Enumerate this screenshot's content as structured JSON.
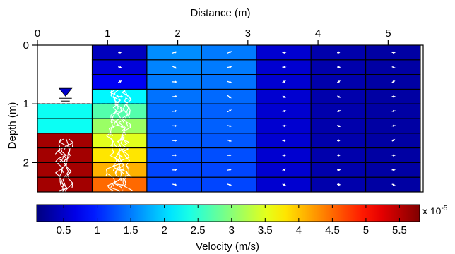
{
  "chart_data": {
    "type": "heatmap",
    "title": "",
    "xlabel": "Distance (m)",
    "ylabel": "Depth (m)",
    "xlim": [
      0,
      5.5
    ],
    "ylim": [
      0,
      2.5
    ],
    "x_ticks": [
      "0",
      "1",
      "2",
      "3",
      "4",
      "5"
    ],
    "y_ticks": [
      "0",
      "1",
      "2"
    ],
    "x_tick_values": [
      0,
      1,
      2,
      3,
      4,
      5
    ],
    "y_tick_values": [
      0,
      1,
      2
    ],
    "water_table_depth": 1.0,
    "columns_x": [
      0,
      0.78,
      1.56,
      2.34,
      3.12,
      3.9,
      4.68,
      5.46
    ],
    "rows_y": [
      0,
      0.25,
      0.5,
      0.75,
      1.0,
      1.25,
      1.5,
      1.75,
      2.0,
      2.25,
      2.5
    ],
    "velocity_columns": [
      [
        null,
        null,
        null,
        null,
        2.3,
        2.3,
        5.6,
        5.6,
        5.6,
        5.6
      ],
      [
        0.45,
        0.6,
        0.75,
        2.2,
        2.7,
        3.1,
        3.5,
        3.8,
        4.1,
        4.5
      ],
      [
        1.6,
        1.55,
        1.5,
        1.45,
        1.4,
        1.35,
        1.3,
        1.25,
        1.2,
        1.2
      ],
      [
        1.5,
        1.5,
        1.45,
        1.4,
        1.35,
        1.35,
        1.3,
        1.25,
        1.2,
        1.2
      ],
      [
        0.55,
        0.55,
        0.55,
        0.55,
        0.55,
        0.55,
        0.55,
        0.55,
        0.55,
        0.55
      ],
      [
        0.35,
        0.35,
        0.35,
        0.35,
        0.35,
        0.35,
        0.35,
        0.35,
        0.35,
        0.35
      ],
      [
        0.3,
        0.3,
        0.3,
        0.3,
        0.3,
        0.3,
        0.3,
        0.3,
        0.3,
        0.3
      ]
    ],
    "colorbar": {
      "label": "Velocity (m/s)",
      "multiplier": "x 10",
      "exponent": "-5",
      "range": [
        0.1,
        5.8
      ],
      "ticks": [
        "0.5",
        "1",
        "1.5",
        "2",
        "2.5",
        "3",
        "3.5",
        "4",
        "4.5",
        "5",
        "5.5"
      ],
      "tick_values": [
        0.5,
        1,
        1.5,
        2,
        2.5,
        3,
        3.5,
        4,
        4.5,
        5,
        5.5
      ]
    },
    "colormap": "jet",
    "colors": {
      "grid": "#000000",
      "arrow": "#ffffff",
      "water_marker": "#0000cc"
    }
  }
}
